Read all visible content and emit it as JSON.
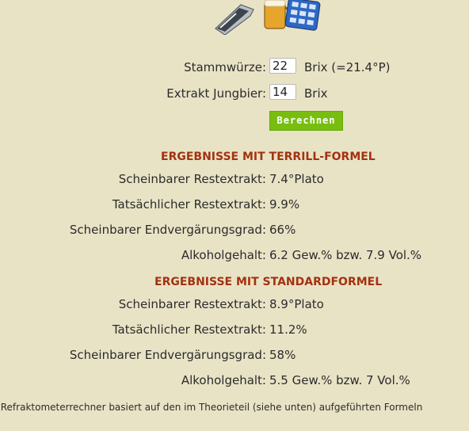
{
  "form": {
    "stammwuerze_label": "Stammwürze:",
    "stammwuerze_value": "22",
    "stammwuerze_unit": "Brix (=21.4°P)",
    "extrakt_label": "Extrakt Jungbier:",
    "extrakt_value": "14",
    "extrakt_unit": "Brix",
    "button_label": "Berechnen"
  },
  "terrill": {
    "heading": "ERGEBNISSE MIT TERRILL-FORMEL",
    "rows": [
      {
        "label": "Scheinbarer Restextrakt:",
        "value": "7.4°Plato"
      },
      {
        "label": "Tatsächlicher Restextrakt:",
        "value": "9.9%"
      },
      {
        "label": "Scheinbarer Endvergärungsgrad:",
        "value": "66%"
      },
      {
        "label": "Alkoholgehalt:",
        "value": "6.2 Gew.% bzw. 7.9 Vol.%"
      }
    ]
  },
  "standard": {
    "heading": "ERGEBNISSE MIT STANDARDFORMEL",
    "rows": [
      {
        "label": "Scheinbarer Restextrakt:",
        "value": "8.9°Plato"
      },
      {
        "label": "Tatsächlicher Restextrakt:",
        "value": "11.2%"
      },
      {
        "label": "Scheinbarer Endvergärungsgrad:",
        "value": "58%"
      },
      {
        "label": "Alkoholgehalt:",
        "value": "5.5 Gew.% bzw. 7 Vol.%"
      }
    ]
  },
  "footnote": "r Refraktometerrechner basiert auf den im Theorieteil (siehe unten) aufgeführten Formeln",
  "icons": [
    "refractometer-icon",
    "beer-mug-icon",
    "calculator-icon"
  ],
  "colors": {
    "background": "#e9e3c6",
    "heading": "#a3320f",
    "button": "#78be11"
  }
}
